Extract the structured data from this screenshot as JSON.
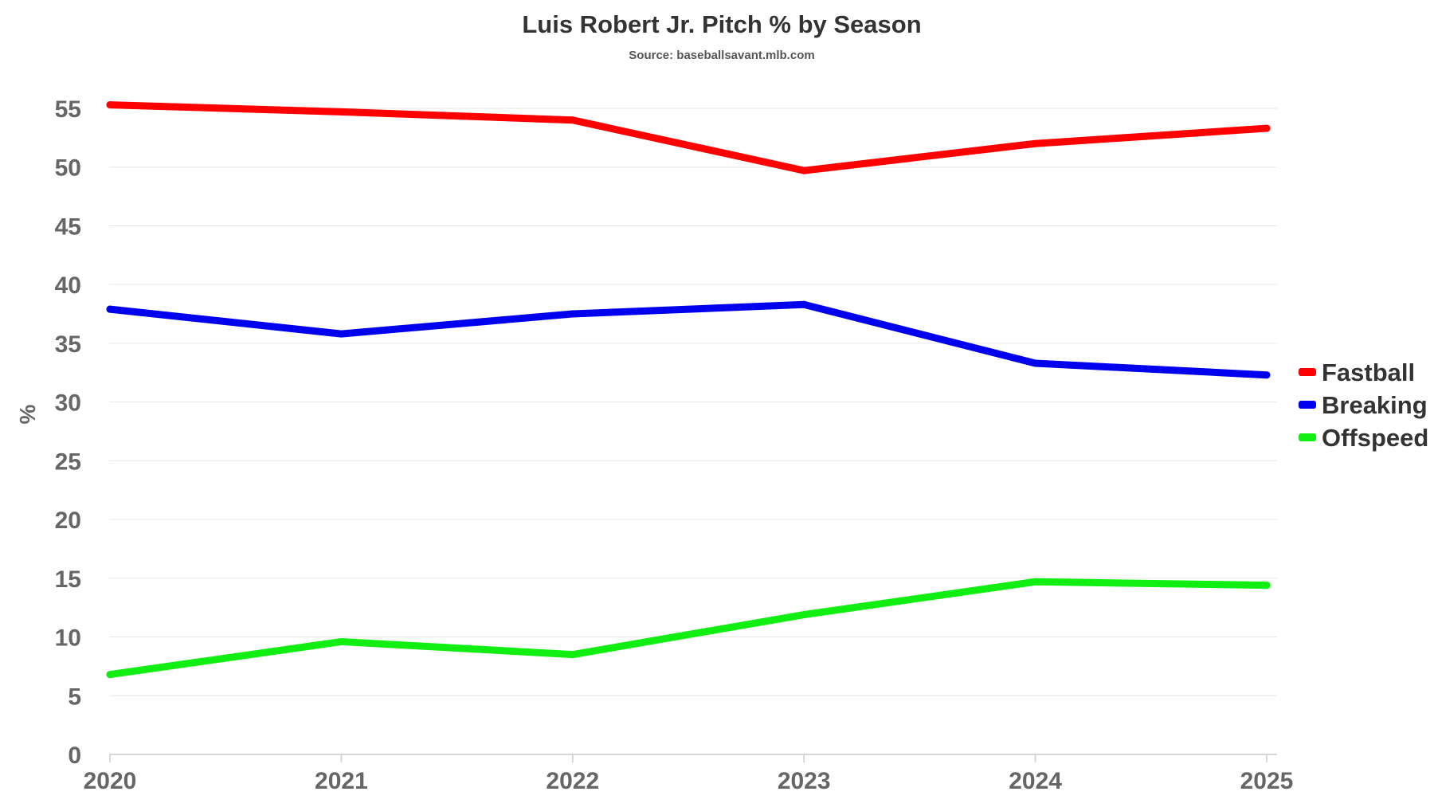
{
  "colors": {
    "background": "#ffffff",
    "title": "#333333",
    "axis_text": "#666666",
    "grid": "#e6e6e6"
  },
  "chart_data": {
    "type": "line",
    "title": "Luis Robert Jr. Pitch % by Season",
    "subtitle": "Source: baseballsavant.mlb.com",
    "xlabel": "",
    "ylabel": "%",
    "categories": [
      "2020",
      "2021",
      "2022",
      "2023",
      "2024",
      "2025"
    ],
    "ylim": [
      0,
      55
    ],
    "yticks": [
      0,
      5,
      10,
      15,
      20,
      25,
      30,
      35,
      40,
      45,
      50,
      55
    ],
    "grid": true,
    "legend_position": "right",
    "series": [
      {
        "name": "Fastball",
        "color": "#ff0000",
        "values": [
          55.3,
          54.7,
          54.0,
          49.7,
          52.0,
          53.3
        ]
      },
      {
        "name": "Breaking",
        "color": "#0000ee",
        "values": [
          37.9,
          35.8,
          37.5,
          38.3,
          33.3,
          32.3
        ]
      },
      {
        "name": "Offspeed",
        "color": "#11ee11",
        "values": [
          6.8,
          9.6,
          8.5,
          11.9,
          14.7,
          14.4
        ]
      }
    ]
  }
}
